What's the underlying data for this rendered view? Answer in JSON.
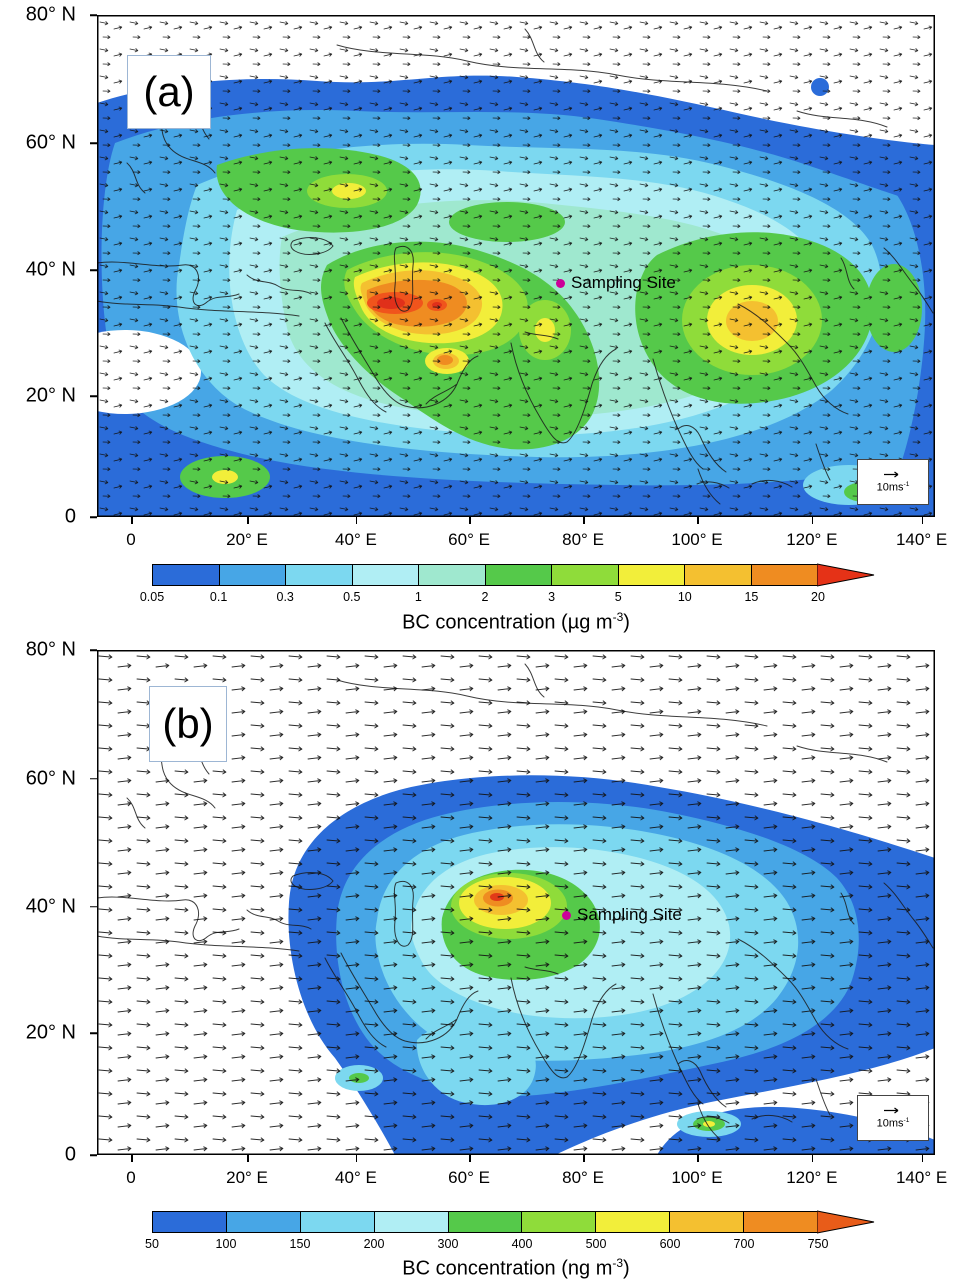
{
  "colors": {
    "site_dot": "#cc0099"
  },
  "axes": {
    "y": [
      "80° N",
      "60° N",
      "40° N",
      "20° N",
      "0"
    ],
    "x": [
      "0",
      "20° E",
      "40° E",
      "60° E",
      "80° E",
      "100° E",
      "120° E",
      "140° E"
    ]
  },
  "panels": {
    "a": {
      "tag": "(a)",
      "site_label": "Sampling Site",
      "wind_ref": {
        "value": "10ms",
        "sup": "-1"
      },
      "colorbar": {
        "labels": [
          "0.05",
          "0.1",
          "0.3",
          "0.5",
          "1",
          "2",
          "3",
          "5",
          "10",
          "15",
          "20"
        ],
        "colors": [
          "#2b6cd9",
          "#47a6e6",
          "#7cd8f0",
          "#b0eef4",
          "#9fe8cf",
          "#55c94a",
          "#8fdc3a",
          "#f2ee3a",
          "#f4c030",
          "#ef8c21"
        ],
        "arrow_color": "#e53217"
      },
      "caption": {
        "pre": "BC concentration (µg m",
        "sup": "-3",
        "suf": ")"
      }
    },
    "b": {
      "tag": "(b)",
      "site_label": "Sampling Site",
      "wind_ref": {
        "value": "10ms",
        "sup": "-1"
      },
      "colorbar": {
        "labels": [
          "50",
          "100",
          "150",
          "200",
          "300",
          "400",
          "500",
          "600",
          "700",
          "750"
        ],
        "colors": [
          "#2b6cd9",
          "#47a6e6",
          "#7cd8f0",
          "#b0eef4",
          "#55c94a",
          "#8fdc3a",
          "#f2ee3a",
          "#f4c030",
          "#ef8c21"
        ],
        "arrow_color": "#e85c19"
      },
      "caption": {
        "pre": "BC concentration (ng m",
        "sup": "-3",
        "suf": ")"
      }
    }
  },
  "chart_data": [
    {
      "type": "heatmap",
      "panel": "(a)",
      "title": "BC concentration (µg m-3) with wind vectors",
      "x_ticks": [
        "0",
        "20° E",
        "40° E",
        "60° E",
        "80° E",
        "100° E",
        "120° E",
        "140° E"
      ],
      "y_ticks": [
        "80° N",
        "60° N",
        "40° N",
        "20° N",
        "0"
      ],
      "colorbar_levels": [
        0.05,
        0.1,
        0.3,
        0.5,
        1,
        2,
        3,
        5,
        10,
        15,
        20
      ],
      "colorbar_label": "BC concentration (µg m-3)",
      "wind_reference": "10ms-1",
      "annotation": "Sampling Site",
      "legend_position": "bottom",
      "notes": "Filled contour map over 0-140E, 0-80N; maximum 15-20 near 45-55E 35N, secondary yellow maxima over East China and Middle East gulf"
    },
    {
      "type": "heatmap",
      "panel": "(b)",
      "title": "BC concentration (ng m-3) with wind vectors",
      "x_ticks": [
        "0",
        "20° E",
        "40° E",
        "60° E",
        "80° E",
        "100° E",
        "120° E",
        "140° E"
      ],
      "y_ticks": [
        "80° N",
        "60° N",
        "40° N",
        "20° N",
        "0"
      ],
      "colorbar_levels": [
        50,
        100,
        150,
        200,
        300,
        400,
        500,
        600,
        700,
        750
      ],
      "colorbar_label": "BC concentration (ng m-3)",
      "wind_reference": "10ms-1",
      "annotation": "Sampling Site",
      "legend_position": "bottom",
      "notes": "Filled contour map; broad blue region over central/south Asia, orange-red maximum near 65E 40N"
    }
  ]
}
